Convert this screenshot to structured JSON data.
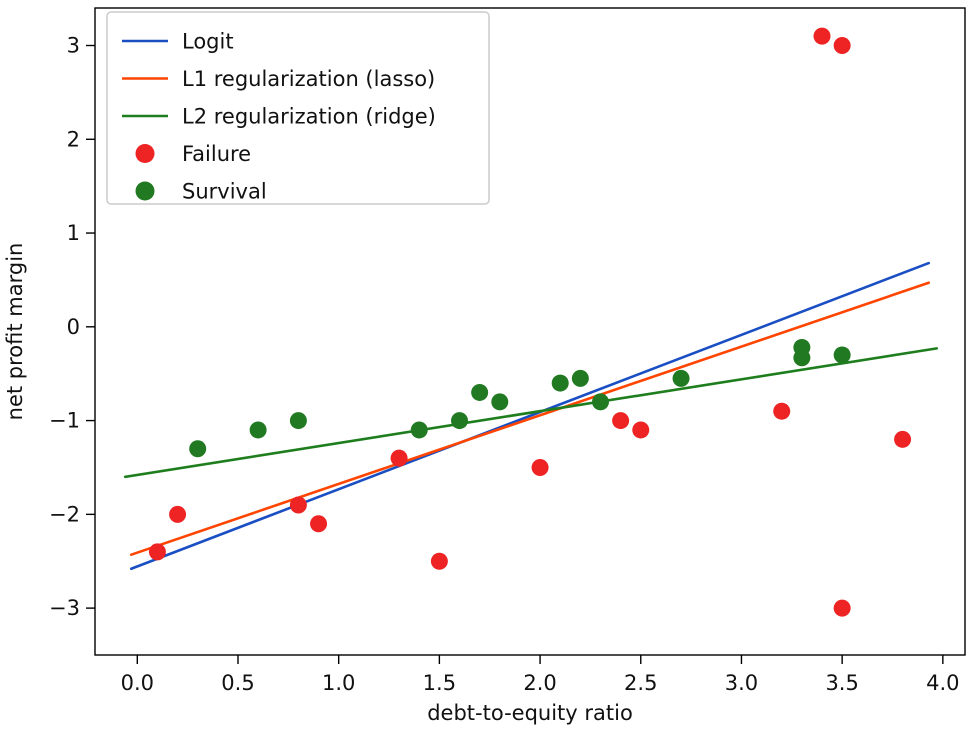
{
  "chart_data": {
    "type": "scatter",
    "title": "",
    "xlabel": "debt-to-equity ratio",
    "ylabel": "net profit margin",
    "xlim": [
      -0.21,
      4.11
    ],
    "ylim": [
      -3.5,
      3.4
    ],
    "xticks": [
      {
        "value": 0.0,
        "label": "0.0"
      },
      {
        "value": 0.5,
        "label": "0.5"
      },
      {
        "value": 1.0,
        "label": "1.0"
      },
      {
        "value": 1.5,
        "label": "1.5"
      },
      {
        "value": 2.0,
        "label": "2.0"
      },
      {
        "value": 2.5,
        "label": "2.5"
      },
      {
        "value": 3.0,
        "label": "3.0"
      },
      {
        "value": 3.5,
        "label": "3.5"
      },
      {
        "value": 4.0,
        "label": "4.0"
      }
    ],
    "yticks": [
      {
        "value": -3,
        "label": "−3"
      },
      {
        "value": -2,
        "label": "−2"
      },
      {
        "value": -1,
        "label": "−1"
      },
      {
        "value": 0,
        "label": "0"
      },
      {
        "value": 1,
        "label": "1"
      },
      {
        "value": 2,
        "label": "2"
      },
      {
        "value": 3,
        "label": "3"
      }
    ],
    "grid": false,
    "legend_position": "upper left",
    "lines": [
      {
        "name": "Logit",
        "color": "#1a4fc3",
        "x": [
          -0.03,
          3.93
        ],
        "y": [
          -2.58,
          0.68
        ]
      },
      {
        "name": "L1 regularization (lasso)",
        "color": "#ff4500",
        "x": [
          -0.03,
          3.93
        ],
        "y": [
          -2.43,
          0.47
        ]
      },
      {
        "name": "L2 regularization (ridge)",
        "color": "#1e7e1e",
        "x": [
          -0.06,
          3.97
        ],
        "y": [
          -1.6,
          -0.23
        ]
      }
    ],
    "scatter": [
      {
        "name": "Failure",
        "color": "#ee2424",
        "points": [
          [
            0.1,
            -2.4
          ],
          [
            0.2,
            -2.0
          ],
          [
            0.8,
            -1.9
          ],
          [
            0.9,
            -2.1
          ],
          [
            1.3,
            -1.4
          ],
          [
            1.5,
            -2.5
          ],
          [
            2.0,
            -1.5
          ],
          [
            2.4,
            -1.0
          ],
          [
            2.5,
            -1.1
          ],
          [
            3.2,
            -0.9
          ],
          [
            3.4,
            3.1
          ],
          [
            3.5,
            3.0
          ],
          [
            3.5,
            -3.0
          ],
          [
            3.8,
            -1.2
          ]
        ]
      },
      {
        "name": "Survival",
        "color": "#217a21",
        "points": [
          [
            0.3,
            -1.3
          ],
          [
            0.6,
            -1.1
          ],
          [
            0.8,
            -1.0
          ],
          [
            1.4,
            -1.1
          ],
          [
            1.6,
            -1.0
          ],
          [
            1.7,
            -0.7
          ],
          [
            1.8,
            -0.8
          ],
          [
            2.1,
            -0.6
          ],
          [
            2.2,
            -0.55
          ],
          [
            2.3,
            -0.8
          ],
          [
            2.7,
            -0.55
          ],
          [
            3.3,
            -0.22
          ],
          [
            3.3,
            -0.33
          ],
          [
            3.5,
            -0.3
          ]
        ]
      }
    ]
  }
}
